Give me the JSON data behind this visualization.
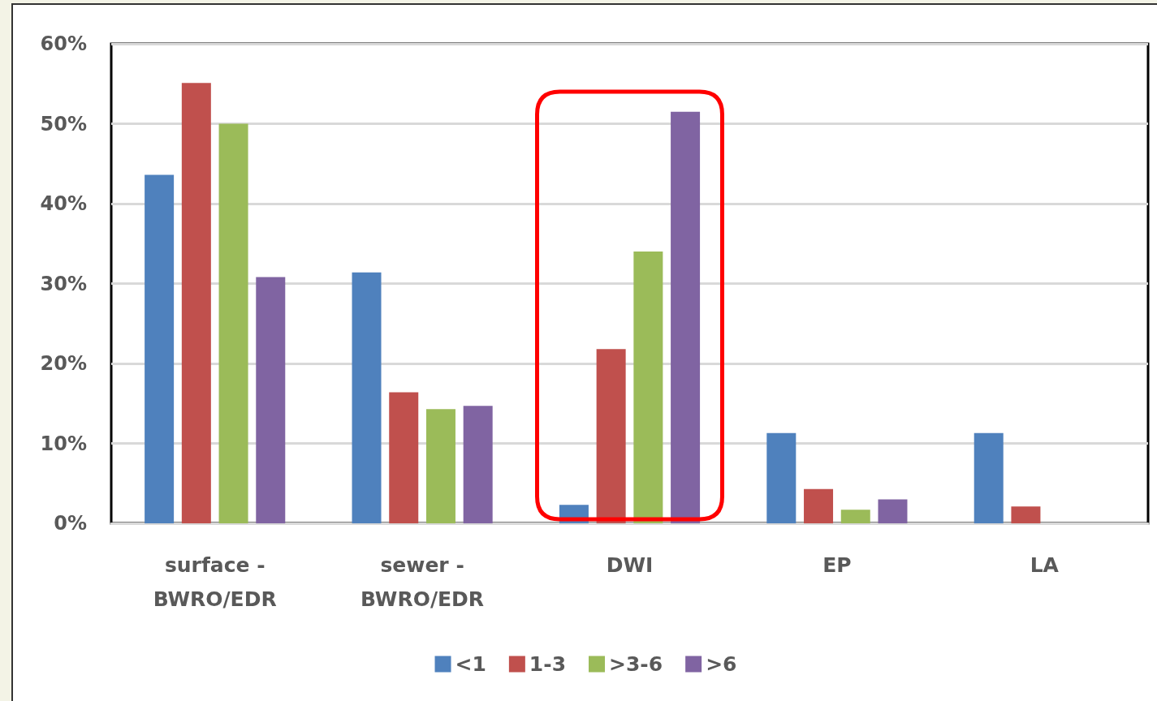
{
  "chart_data": {
    "type": "bar",
    "categories": [
      "surface -\nBWRO/EDR",
      "sewer -\nBWRO/EDR",
      "DWI",
      "EP",
      "LA"
    ],
    "series": [
      {
        "name": "<1",
        "color": "#4f81bd",
        "values": [
          43.6,
          31.4,
          2.3,
          11.3,
          11.3
        ]
      },
      {
        "name": "1-3",
        "color": "#c0504d",
        "values": [
          55.1,
          16.4,
          21.8,
          4.3,
          2.1
        ]
      },
      {
        "name": ">3-6",
        "color": "#9bbb59",
        "values": [
          50.0,
          14.3,
          34.0,
          1.7,
          0
        ]
      },
      {
        "name": ">6",
        "color": "#8064a2",
        "values": [
          30.8,
          14.7,
          51.5,
          3.0,
          0
        ]
      }
    ],
    "ylim": [
      0,
      60
    ],
    "yticks": [
      {
        "value": 0,
        "label": "0%"
      },
      {
        "value": 10,
        "label": "10%"
      },
      {
        "value": 20,
        "label": "20%"
      },
      {
        "value": 30,
        "label": "30%"
      },
      {
        "value": 40,
        "label": "40%"
      },
      {
        "value": 50,
        "label": "50%"
      },
      {
        "value": 60,
        "label": "60%"
      }
    ],
    "grid": "y",
    "legend": "bottom"
  }
}
